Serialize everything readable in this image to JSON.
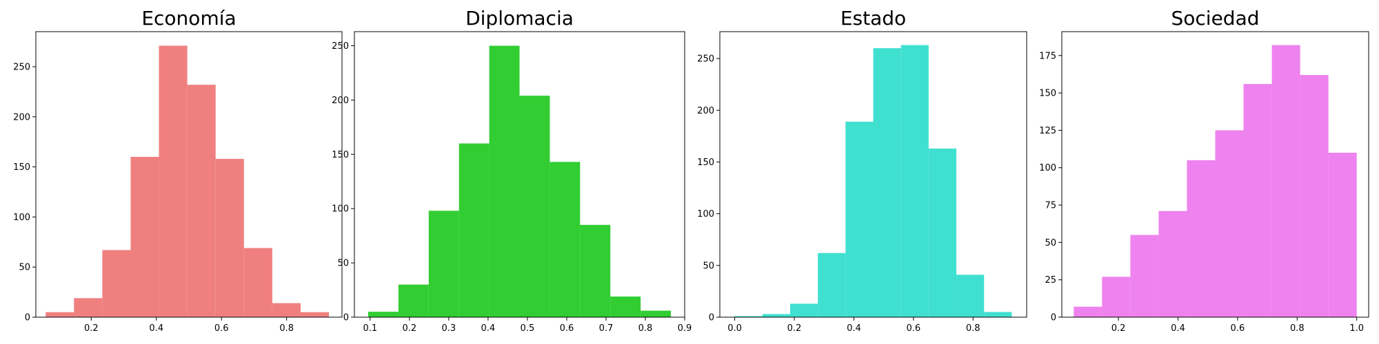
{
  "chart_data": [
    {
      "type": "bar",
      "subtype": "histogram",
      "title": "Economía",
      "color": "#F08080",
      "xlim": [
        0.03,
        0.97
      ],
      "ylim": [
        0,
        285
      ],
      "xticks": [
        0.2,
        0.4,
        0.6,
        0.8
      ],
      "xtick_labels": [
        "0.2",
        "0.4",
        "0.6",
        "0.8"
      ],
      "yticks": [
        0,
        50,
        100,
        150,
        200,
        250
      ],
      "ytick_labels": [
        "0",
        "50",
        "100",
        "150",
        "200",
        "250"
      ],
      "bins": [
        {
          "x0": 0.06,
          "x1": 0.147,
          "value": 5
        },
        {
          "x0": 0.147,
          "x1": 0.234,
          "value": 19
        },
        {
          "x0": 0.234,
          "x1": 0.321,
          "value": 67
        },
        {
          "x0": 0.321,
          "x1": 0.408,
          "value": 160
        },
        {
          "x0": 0.408,
          "x1": 0.495,
          "value": 271
        },
        {
          "x0": 0.495,
          "x1": 0.582,
          "value": 232
        },
        {
          "x0": 0.582,
          "x1": 0.669,
          "value": 158
        },
        {
          "x0": 0.669,
          "x1": 0.756,
          "value": 69
        },
        {
          "x0": 0.756,
          "x1": 0.843,
          "value": 14
        },
        {
          "x0": 0.843,
          "x1": 0.93,
          "value": 5
        }
      ]
    },
    {
      "type": "bar",
      "subtype": "histogram",
      "title": "Diplomacia",
      "color": "#32CD32",
      "xlim": [
        0.06,
        0.9
      ],
      "ylim": [
        0,
        263
      ],
      "xticks": [
        0.1,
        0.2,
        0.3,
        0.4,
        0.5,
        0.6,
        0.7,
        0.8,
        0.9
      ],
      "xtick_labels": [
        "0.1",
        "0.2",
        "0.3",
        "0.4",
        "0.5",
        "0.6",
        "0.7",
        "0.8",
        "0.9"
      ],
      "yticks": [
        0,
        50,
        100,
        150,
        200,
        250
      ],
      "ytick_labels": [
        "0",
        "50",
        "100",
        "150",
        "200",
        "250"
      ],
      "bins": [
        {
          "x0": 0.095,
          "x1": 0.172,
          "value": 5
        },
        {
          "x0": 0.172,
          "x1": 0.249,
          "value": 30
        },
        {
          "x0": 0.249,
          "x1": 0.326,
          "value": 98
        },
        {
          "x0": 0.326,
          "x1": 0.403,
          "value": 160
        },
        {
          "x0": 0.403,
          "x1": 0.48,
          "value": 250
        },
        {
          "x0": 0.48,
          "x1": 0.557,
          "value": 204
        },
        {
          "x0": 0.557,
          "x1": 0.634,
          "value": 143
        },
        {
          "x0": 0.634,
          "x1": 0.711,
          "value": 85
        },
        {
          "x0": 0.711,
          "x1": 0.788,
          "value": 19
        },
        {
          "x0": 0.788,
          "x1": 0.865,
          "value": 6
        }
      ]
    },
    {
      "type": "bar",
      "subtype": "histogram",
      "title": "Estado",
      "color": "#40E0D0",
      "xlim": [
        -0.05,
        0.98
      ],
      "ylim": [
        0,
        276
      ],
      "xticks": [
        0.0,
        0.2,
        0.4,
        0.6,
        0.8
      ],
      "xtick_labels": [
        "0.0",
        "0.2",
        "0.4",
        "0.6",
        "0.8"
      ],
      "yticks": [
        0,
        50,
        100,
        150,
        200,
        250
      ],
      "ytick_labels": [
        "0",
        "50",
        "100",
        "150",
        "200",
        "250"
      ],
      "bins": [
        {
          "x0": 0.0,
          "x1": 0.093,
          "value": 1
        },
        {
          "x0": 0.093,
          "x1": 0.186,
          "value": 3
        },
        {
          "x0": 0.186,
          "x1": 0.279,
          "value": 13
        },
        {
          "x0": 0.279,
          "x1": 0.372,
          "value": 62
        },
        {
          "x0": 0.372,
          "x1": 0.465,
          "value": 189
        },
        {
          "x0": 0.465,
          "x1": 0.558,
          "value": 260
        },
        {
          "x0": 0.558,
          "x1": 0.651,
          "value": 263
        },
        {
          "x0": 0.651,
          "x1": 0.744,
          "value": 163
        },
        {
          "x0": 0.744,
          "x1": 0.837,
          "value": 41
        },
        {
          "x0": 0.837,
          "x1": 0.93,
          "value": 5
        }
      ]
    },
    {
      "type": "bar",
      "subtype": "histogram",
      "title": "Sociedad",
      "color": "#EE82EE",
      "xlim": [
        0.01,
        1.04
      ],
      "ylim": [
        0,
        191
      ],
      "xticks": [
        0.2,
        0.4,
        0.6,
        0.8,
        1.0
      ],
      "xtick_labels": [
        "0.2",
        "0.4",
        "0.6",
        "0.8",
        "1.0"
      ],
      "yticks": [
        0,
        25,
        50,
        75,
        100,
        125,
        150,
        175
      ],
      "ytick_labels": [
        "0",
        "25",
        "50",
        "75",
        "100",
        "125",
        "150",
        "175"
      ],
      "bins": [
        {
          "x0": 0.05,
          "x1": 0.145,
          "value": 7
        },
        {
          "x0": 0.145,
          "x1": 0.24,
          "value": 27
        },
        {
          "x0": 0.24,
          "x1": 0.335,
          "value": 55
        },
        {
          "x0": 0.335,
          "x1": 0.43,
          "value": 71
        },
        {
          "x0": 0.43,
          "x1": 0.525,
          "value": 105
        },
        {
          "x0": 0.525,
          "x1": 0.62,
          "value": 125
        },
        {
          "x0": 0.62,
          "x1": 0.715,
          "value": 156
        },
        {
          "x0": 0.715,
          "x1": 0.81,
          "value": 182
        },
        {
          "x0": 0.81,
          "x1": 0.905,
          "value": 162
        },
        {
          "x0": 0.905,
          "x1": 1.0,
          "value": 110
        }
      ]
    }
  ]
}
